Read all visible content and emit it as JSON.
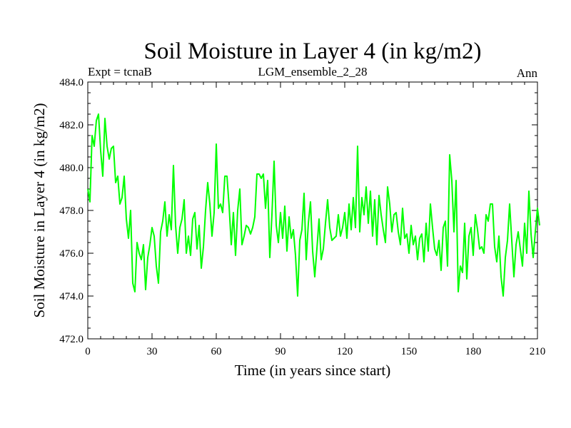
{
  "chart_data": {
    "type": "line",
    "title": "Soil Moisture in Layer 4 (in kg/m2)",
    "subtitle_left": "Expt = tcnaB",
    "subtitle_center": "LGM_ensemble_2_28",
    "subtitle_right": "Ann",
    "xlabel": "Time (in years since start)",
    "ylabel": "Soil Moisture in Layer 4 (in kg/m2)",
    "xlim": [
      0,
      210
    ],
    "ylim": [
      472,
      484
    ],
    "x_ticks": [
      0,
      30,
      60,
      90,
      120,
      150,
      180,
      210
    ],
    "x_tick_labels": [
      "0",
      "30",
      "60",
      "90",
      "120",
      "150",
      "180",
      "210"
    ],
    "y_ticks": [
      472,
      474,
      476,
      478,
      480,
      482,
      484
    ],
    "y_tick_labels": [
      "472.0",
      "474.0",
      "476.0",
      "478.0",
      "480.0",
      "482.0",
      "484.0"
    ],
    "line_color": "#00ff00",
    "series": [
      {
        "name": "Soil Moisture Layer 4",
        "x_start": 0,
        "x_step": 1,
        "values": [
          479.0,
          478.4,
          481.5,
          481.0,
          482.2,
          482.5,
          480.8,
          479.6,
          482.3,
          481.0,
          480.4,
          480.9,
          481.0,
          479.3,
          479.6,
          478.3,
          478.6,
          479.6,
          477.6,
          476.7,
          478.0,
          474.6,
          474.2,
          476.5,
          476.0,
          475.7,
          476.4,
          474.3,
          475.8,
          476.4,
          477.2,
          476.8,
          475.4,
          474.6,
          477.0,
          477.5,
          478.4,
          476.8,
          477.8,
          477.1,
          480.1,
          477.3,
          476.0,
          477.2,
          477.6,
          478.5,
          476.0,
          476.8,
          475.9,
          477.6,
          477.9,
          476.2,
          477.3,
          475.3,
          476.3,
          478.0,
          479.3,
          478.3,
          476.8,
          477.9,
          481.1,
          478.1,
          478.3,
          477.9,
          479.6,
          479.6,
          478.2,
          476.4,
          477.9,
          475.9,
          478.0,
          479.0,
          476.4,
          476.8,
          477.3,
          477.2,
          476.9,
          477.2,
          477.7,
          479.7,
          479.7,
          479.5,
          479.7,
          478.1,
          479.4,
          475.8,
          477.8,
          480.3,
          477.3,
          476.5,
          477.9,
          476.7,
          478.2,
          476.1,
          477.7,
          476.7,
          477.1,
          475.9,
          474.0,
          476.6,
          477.1,
          478.8,
          475.7,
          477.4,
          478.4,
          476.1,
          474.9,
          476.2,
          477.6,
          475.7,
          476.2,
          477.4,
          478.5,
          477.2,
          476.6,
          476.7,
          476.8,
          477.8,
          476.8,
          477.2,
          477.9,
          476.7,
          478.3,
          477.1,
          478.6,
          477.2,
          481.0,
          477.0,
          478.6,
          477.8,
          479.1,
          477.4,
          478.9,
          476.8,
          478.5,
          476.4,
          478.7,
          477.8,
          477.1,
          476.5,
          479.1,
          478.3,
          477.0,
          477.8,
          477.9,
          477.0,
          476.4,
          478.1,
          476.7,
          476.9,
          476.0,
          477.3,
          476.4,
          476.8,
          475.7,
          476.7,
          476.9,
          475.6,
          477.4,
          476.1,
          478.3,
          477.2,
          476.2,
          475.9,
          476.6,
          475.2,
          477.2,
          477.5,
          475.4,
          480.6,
          479.4,
          477.0,
          479.4,
          474.2,
          475.4,
          475.1,
          477.4,
          474.8,
          476.8,
          477.2,
          475.9,
          477.8,
          477.1,
          476.2,
          476.3,
          476.0,
          477.8,
          477.5,
          478.3,
          478.3,
          476.3,
          475.6,
          476.8,
          474.9,
          474.0,
          475.8,
          476.6,
          478.3,
          476.6,
          474.9,
          476.4,
          477.0,
          476.2,
          475.4,
          477.4,
          476.0,
          478.9,
          476.9,
          475.8,
          477.0,
          478.1,
          477.3
        ]
      }
    ]
  }
}
